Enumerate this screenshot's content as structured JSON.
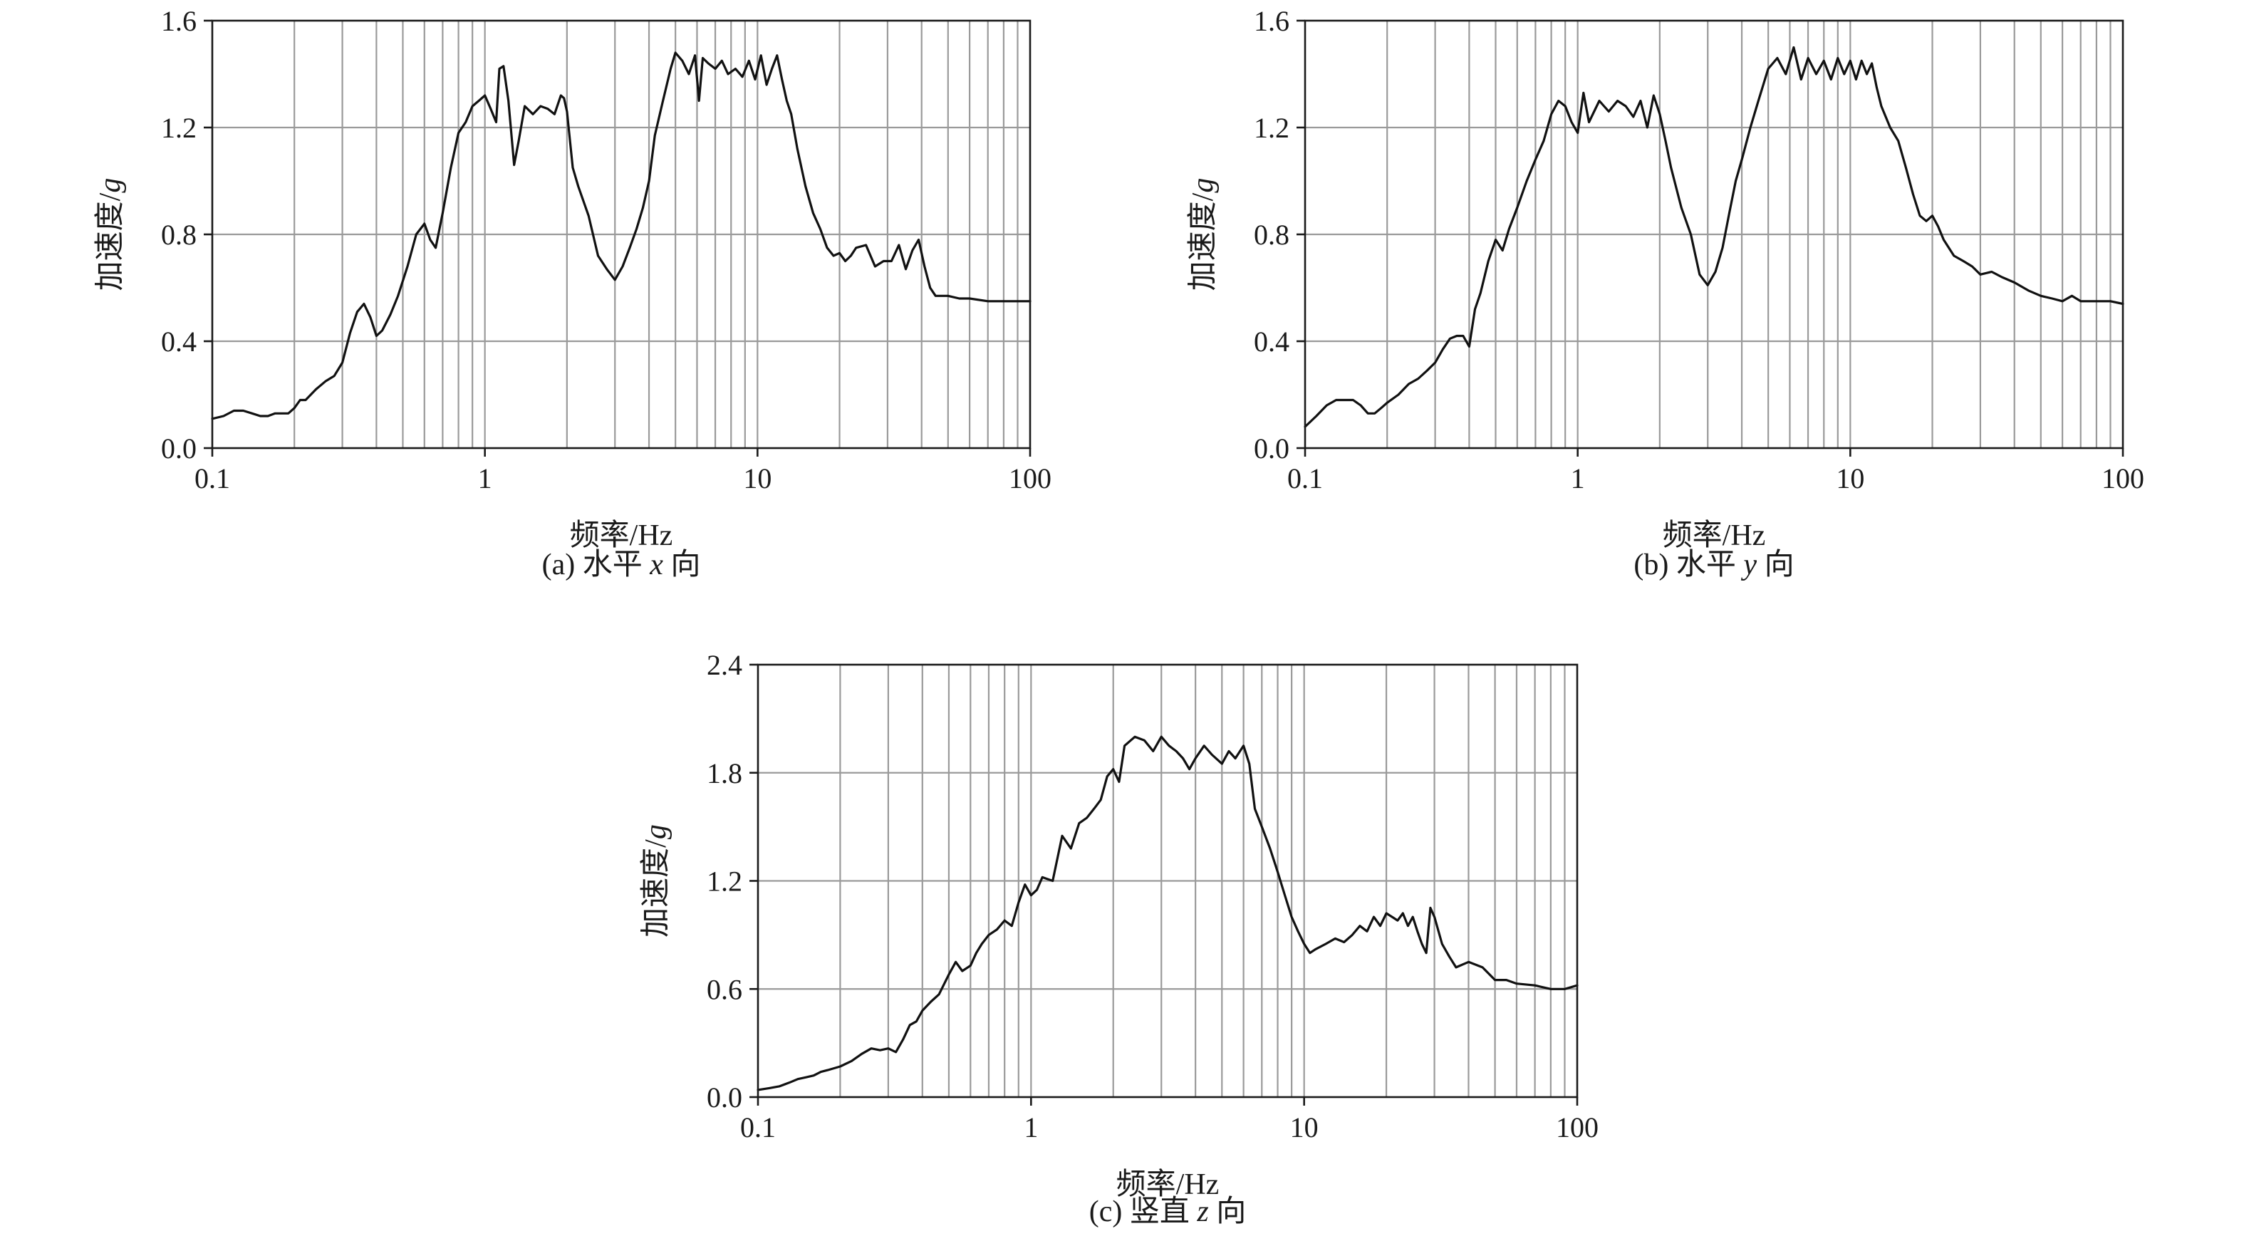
{
  "figure": {
    "panels": [
      {
        "caption_label": "(a)",
        "caption_text": "水平",
        "caption_var": "x",
        "caption_suffix": "向"
      },
      {
        "caption_label": "(b)",
        "caption_text": "水平",
        "caption_var": "y",
        "caption_suffix": "向"
      },
      {
        "caption_label": "(c)",
        "caption_text": "竖直",
        "caption_var": "z",
        "caption_suffix": "向"
      }
    ]
  },
  "chart_data": [
    {
      "type": "line",
      "xlabel": "频率/Hz",
      "ylabel_text": "加速度/",
      "ylabel_unit": "g",
      "x_scale": "log",
      "xlim": [
        0.1,
        100
      ],
      "ylim": [
        0,
        1.6
      ],
      "x_ticks": [
        "0.1",
        "1",
        "10",
        "100"
      ],
      "y_ticks": [
        "0.0",
        "0.4",
        "0.8",
        "1.2",
        "1.6"
      ],
      "grid": true,
      "series": [
        {
          "x": [
            0.1,
            0.11,
            0.12,
            0.13,
            0.14,
            0.15,
            0.16,
            0.17,
            0.18,
            0.19,
            0.2,
            0.21,
            0.22,
            0.24,
            0.26,
            0.28,
            0.3,
            0.32,
            0.34,
            0.36,
            0.38,
            0.4,
            0.42,
            0.45,
            0.48,
            0.52,
            0.56,
            0.6,
            0.63,
            0.66,
            0.7,
            0.75,
            0.8,
            0.85,
            0.9,
            0.95,
            1.0,
            1.05,
            1.1,
            1.13,
            1.17,
            1.22,
            1.28,
            1.33,
            1.4,
            1.5,
            1.6,
            1.7,
            1.8,
            1.9,
            1.95,
            2.0,
            2.1,
            2.2,
            2.4,
            2.6,
            2.8,
            3.0,
            3.2,
            3.4,
            3.6,
            3.8,
            4.0,
            4.2,
            4.5,
            4.8,
            5.0,
            5.3,
            5.6,
            5.9,
            6.1,
            6.3,
            6.6,
            7.0,
            7.4,
            7.8,
            8.3,
            8.8,
            9.3,
            9.8,
            10.3,
            10.8,
            11.3,
            11.8,
            12.3,
            12.8,
            13.3,
            14.0,
            15.0,
            16.0,
            17.0,
            18.0,
            19.0,
            20.0,
            21.0,
            22.0,
            23.0,
            25.0,
            27.0,
            29.0,
            31.0,
            33.0,
            35.0,
            37.0,
            39.0,
            41.0,
            43.0,
            45.0,
            50.0,
            55.0,
            60.0,
            70.0,
            80.0,
            90.0,
            100.0
          ],
          "y": [
            0.11,
            0.12,
            0.14,
            0.14,
            0.13,
            0.12,
            0.12,
            0.13,
            0.13,
            0.13,
            0.15,
            0.18,
            0.18,
            0.22,
            0.25,
            0.27,
            0.32,
            0.43,
            0.51,
            0.54,
            0.49,
            0.42,
            0.44,
            0.5,
            0.57,
            0.68,
            0.8,
            0.84,
            0.78,
            0.75,
            0.88,
            1.05,
            1.18,
            1.22,
            1.28,
            1.3,
            1.32,
            1.27,
            1.22,
            1.42,
            1.43,
            1.3,
            1.06,
            1.15,
            1.28,
            1.25,
            1.28,
            1.27,
            1.25,
            1.32,
            1.31,
            1.26,
            1.05,
            0.98,
            0.87,
            0.72,
            0.67,
            0.63,
            0.68,
            0.75,
            0.82,
            0.9,
            1.0,
            1.17,
            1.3,
            1.42,
            1.48,
            1.45,
            1.4,
            1.47,
            1.3,
            1.46,
            1.44,
            1.42,
            1.45,
            1.4,
            1.42,
            1.39,
            1.45,
            1.38,
            1.47,
            1.36,
            1.42,
            1.47,
            1.38,
            1.3,
            1.25,
            1.12,
            0.98,
            0.88,
            0.82,
            0.75,
            0.72,
            0.73,
            0.7,
            0.72,
            0.75,
            0.76,
            0.68,
            0.7,
            0.7,
            0.76,
            0.67,
            0.74,
            0.78,
            0.68,
            0.6,
            0.57,
            0.57,
            0.56,
            0.56,
            0.55,
            0.55,
            0.55,
            0.55
          ]
        }
      ]
    },
    {
      "type": "line",
      "xlabel": "频率/Hz",
      "ylabel_text": "加速度/",
      "ylabel_unit": "g",
      "x_scale": "log",
      "xlim": [
        0.1,
        100
      ],
      "ylim": [
        0,
        1.6
      ],
      "x_ticks": [
        "0.1",
        "1",
        "10",
        "100"
      ],
      "y_ticks": [
        "0.0",
        "0.4",
        "0.8",
        "1.2",
        "1.6"
      ],
      "grid": true,
      "series": [
        {
          "x": [
            0.1,
            0.11,
            0.12,
            0.13,
            0.14,
            0.15,
            0.16,
            0.17,
            0.18,
            0.19,
            0.2,
            0.22,
            0.24,
            0.26,
            0.28,
            0.3,
            0.32,
            0.34,
            0.36,
            0.38,
            0.4,
            0.42,
            0.44,
            0.47,
            0.5,
            0.53,
            0.56,
            0.6,
            0.65,
            0.7,
            0.75,
            0.8,
            0.85,
            0.9,
            0.95,
            1.0,
            1.05,
            1.1,
            1.2,
            1.3,
            1.4,
            1.5,
            1.6,
            1.7,
            1.8,
            1.9,
            2.0,
            2.1,
            2.2,
            2.4,
            2.6,
            2.8,
            3.0,
            3.2,
            3.4,
            3.6,
            3.8,
            4.0,
            4.3,
            4.6,
            5.0,
            5.4,
            5.8,
            6.2,
            6.6,
            7.0,
            7.5,
            8.0,
            8.5,
            9.0,
            9.5,
            10.0,
            10.5,
            11.0,
            11.5,
            12.0,
            12.5,
            13.0,
            14.0,
            15.0,
            16.0,
            17.0,
            18.0,
            19.0,
            20.0,
            21.0,
            22.0,
            24.0,
            26.0,
            28.0,
            30.0,
            33.0,
            36.0,
            40.0,
            45.0,
            50.0,
            55.0,
            60.0,
            65.0,
            70.0,
            80.0,
            90.0,
            100.0
          ],
          "y": [
            0.08,
            0.12,
            0.16,
            0.18,
            0.18,
            0.18,
            0.16,
            0.13,
            0.13,
            0.15,
            0.17,
            0.2,
            0.24,
            0.26,
            0.29,
            0.32,
            0.37,
            0.41,
            0.42,
            0.42,
            0.38,
            0.52,
            0.58,
            0.7,
            0.78,
            0.74,
            0.82,
            0.9,
            1.0,
            1.08,
            1.15,
            1.25,
            1.3,
            1.28,
            1.22,
            1.18,
            1.33,
            1.22,
            1.3,
            1.26,
            1.3,
            1.28,
            1.24,
            1.3,
            1.2,
            1.32,
            1.25,
            1.15,
            1.05,
            0.9,
            0.8,
            0.65,
            0.61,
            0.66,
            0.75,
            0.88,
            1.0,
            1.08,
            1.2,
            1.3,
            1.42,
            1.46,
            1.4,
            1.5,
            1.38,
            1.46,
            1.4,
            1.45,
            1.38,
            1.46,
            1.4,
            1.45,
            1.38,
            1.45,
            1.4,
            1.44,
            1.35,
            1.28,
            1.2,
            1.15,
            1.05,
            0.95,
            0.87,
            0.85,
            0.87,
            0.83,
            0.78,
            0.72,
            0.7,
            0.68,
            0.65,
            0.66,
            0.64,
            0.62,
            0.59,
            0.57,
            0.56,
            0.55,
            0.57,
            0.55,
            0.55,
            0.55,
            0.54
          ]
        }
      ]
    },
    {
      "type": "line",
      "xlabel": "频率/Hz",
      "ylabel_text": "加速度/",
      "ylabel_unit": "g",
      "x_scale": "log",
      "xlim": [
        0.1,
        100
      ],
      "ylim": [
        0,
        2.4
      ],
      "x_ticks": [
        "0.1",
        "1",
        "10",
        "100"
      ],
      "y_ticks": [
        "0.0",
        "0.6",
        "1.2",
        "1.8",
        "2.4"
      ],
      "grid": true,
      "series": [
        {
          "x": [
            0.1,
            0.11,
            0.12,
            0.13,
            0.14,
            0.15,
            0.16,
            0.17,
            0.18,
            0.19,
            0.2,
            0.22,
            0.24,
            0.26,
            0.28,
            0.3,
            0.32,
            0.34,
            0.36,
            0.38,
            0.4,
            0.43,
            0.46,
            0.5,
            0.53,
            0.56,
            0.6,
            0.63,
            0.66,
            0.7,
            0.75,
            0.8,
            0.85,
            0.9,
            0.95,
            1.0,
            1.05,
            1.1,
            1.2,
            1.3,
            1.4,
            1.5,
            1.6,
            1.7,
            1.8,
            1.9,
            2.0,
            2.1,
            2.2,
            2.4,
            2.6,
            2.8,
            3.0,
            3.2,
            3.4,
            3.6,
            3.8,
            4.0,
            4.3,
            4.6,
            5.0,
            5.3,
            5.6,
            6.0,
            6.3,
            6.6,
            7.0,
            7.5,
            8.0,
            8.5,
            9.0,
            9.5,
            10.0,
            10.5,
            11.0,
            12.0,
            13.0,
            14.0,
            15.0,
            16.0,
            17.0,
            18.0,
            19.0,
            20.0,
            21.0,
            22.0,
            23.0,
            24.0,
            25.0,
            26.0,
            27.0,
            28.0,
            29.0,
            30.0,
            32.0,
            34.0,
            36.0,
            40.0,
            45.0,
            50.0,
            55.0,
            60.0,
            70.0,
            80.0,
            90.0,
            100.0
          ],
          "y": [
            0.04,
            0.05,
            0.06,
            0.08,
            0.1,
            0.11,
            0.12,
            0.14,
            0.15,
            0.16,
            0.17,
            0.2,
            0.24,
            0.27,
            0.26,
            0.27,
            0.25,
            0.32,
            0.4,
            0.42,
            0.48,
            0.53,
            0.57,
            0.68,
            0.75,
            0.7,
            0.73,
            0.8,
            0.85,
            0.9,
            0.93,
            0.98,
            0.95,
            1.08,
            1.18,
            1.12,
            1.15,
            1.22,
            1.2,
            1.45,
            1.38,
            1.52,
            1.55,
            1.6,
            1.65,
            1.78,
            1.82,
            1.75,
            1.95,
            2.0,
            1.98,
            1.92,
            2.0,
            1.95,
            1.92,
            1.88,
            1.82,
            1.88,
            1.95,
            1.9,
            1.85,
            1.92,
            1.88,
            1.95,
            1.85,
            1.6,
            1.5,
            1.38,
            1.25,
            1.12,
            1.0,
            0.92,
            0.85,
            0.8,
            0.82,
            0.85,
            0.88,
            0.86,
            0.9,
            0.95,
            0.92,
            1.0,
            0.95,
            1.02,
            1.0,
            0.98,
            1.02,
            0.95,
            1.0,
            0.92,
            0.85,
            0.8,
            1.05,
            1.0,
            0.85,
            0.78,
            0.72,
            0.75,
            0.72,
            0.65,
            0.65,
            0.63,
            0.62,
            0.6,
            0.6,
            0.62
          ]
        }
      ]
    }
  ]
}
